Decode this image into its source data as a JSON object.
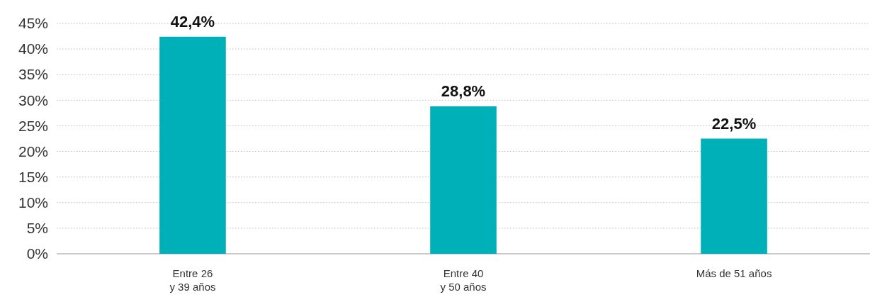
{
  "chart_data": {
    "type": "bar",
    "categories": [
      "Entre 26\ny 39 años",
      "Entre 40\ny 50 años",
      "Más de 51 años"
    ],
    "values": [
      42.4,
      28.8,
      22.5
    ],
    "value_labels": [
      "42,4%",
      "28,8%",
      "22,5%"
    ],
    "color": "#00b0b9",
    "ylim": [
      0,
      45
    ],
    "yticks": [
      {
        "value": 0,
        "label": "0%"
      },
      {
        "value": 5,
        "label": "5%"
      },
      {
        "value": 10,
        "label": "10%"
      },
      {
        "value": 15,
        "label": "15%"
      },
      {
        "value": 20,
        "label": "20%"
      },
      {
        "value": 25,
        "label": "25%"
      },
      {
        "value": 30,
        "label": "30%"
      },
      {
        "value": 35,
        "label": "35%"
      },
      {
        "value": 40,
        "label": "40%"
      },
      {
        "value": 45,
        "label": "45%"
      }
    ],
    "grid": "y"
  }
}
